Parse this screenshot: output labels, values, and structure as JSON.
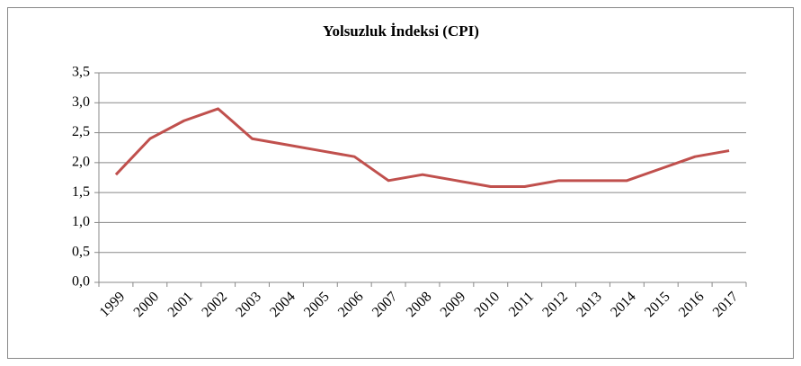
{
  "chart_data": {
    "type": "line",
    "title": "Yolsuzluk İndeksi (CPI)",
    "categories": [
      "1999",
      "2000",
      "2001",
      "2002",
      "2003",
      "2004",
      "2005",
      "2006",
      "2007",
      "2008",
      "2009",
      "2010",
      "2011",
      "2012",
      "2013",
      "2014",
      "2015",
      "2016",
      "2017"
    ],
    "series": [
      {
        "name": "CPI",
        "color": "#c0504d",
        "values": [
          1.8,
          2.4,
          2.7,
          2.9,
          2.4,
          2.3,
          2.2,
          2.1,
          1.7,
          1.8,
          1.7,
          1.6,
          1.6,
          1.7,
          1.7,
          1.7,
          1.9,
          2.1,
          2.2
        ]
      }
    ],
    "ylim": [
      0,
      3.5
    ],
    "yticks": [
      {
        "value": 0,
        "label": "0,0"
      },
      {
        "value": 0.5,
        "label": "0,5"
      },
      {
        "value": 1,
        "label": "1,0"
      },
      {
        "value": 1.5,
        "label": "1,5"
      },
      {
        "value": 2,
        "label": "2,0"
      },
      {
        "value": 2.5,
        "label": "2,5"
      },
      {
        "value": 3,
        "label": "3,0"
      },
      {
        "value": 3.5,
        "label": "3,5"
      }
    ],
    "grid": true
  }
}
